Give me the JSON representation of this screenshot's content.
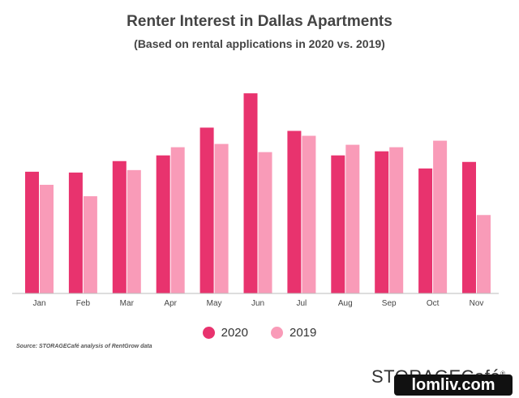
{
  "chart_data": {
    "type": "bar",
    "title": "Renter Interest in Dallas Apartments",
    "subtitle": "(Based on rental applications in 2020 vs. 2019)",
    "categories": [
      "Jan",
      "Feb",
      "Mar",
      "Apr",
      "May",
      "Jun",
      "Jul",
      "Aug",
      "Sep",
      "Oct",
      "Nov"
    ],
    "series": [
      {
        "name": "2020",
        "color": "#e8336e",
        "values": [
          149,
          148,
          162,
          169,
          203,
          245,
          199,
          169,
          174,
          153,
          161
        ]
      },
      {
        "name": "2019",
        "color": "#f99bb8",
        "values": [
          133,
          119,
          151,
          179,
          183,
          173,
          193,
          182,
          179,
          187,
          96
        ]
      }
    ],
    "ylim": [
      0,
      260
    ],
    "grid": false,
    "legend_position": "bottom"
  },
  "source": "Source: STORAGECafé analysis of RentGrow data",
  "brand": "STORAGECafé",
  "brand_mark": "®",
  "watermark": "lomliv.com"
}
